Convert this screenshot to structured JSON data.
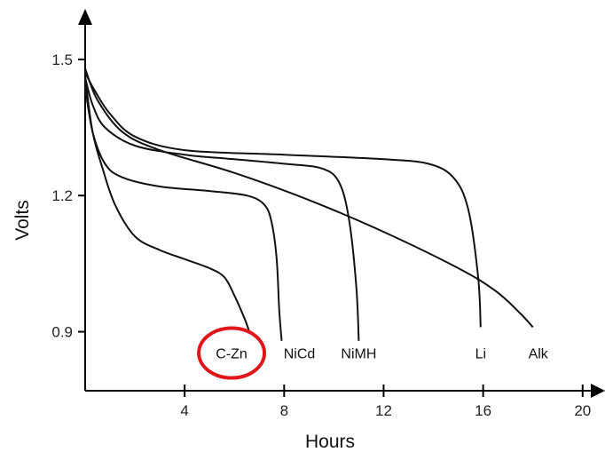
{
  "chart_data": {
    "type": "line",
    "xlabel": "Hours",
    "ylabel": "Volts",
    "xlim": [
      0,
      20.4
    ],
    "ylim": [
      0.77,
      1.58
    ],
    "x_ticks": [
      4,
      8,
      12,
      16,
      20
    ],
    "y_ticks": [
      0.9,
      1.2,
      1.5
    ],
    "y_tick_labels": [
      "0.9",
      "1.2",
      "1.5"
    ],
    "series": [
      {
        "name": "C-Zn",
        "highlighted": true,
        "highlight_color": "#e0161b",
        "points": [
          [
            0,
            1.46
          ],
          [
            0.3,
            1.34
          ],
          [
            0.7,
            1.26
          ],
          [
            1.2,
            1.18
          ],
          [
            2,
            1.11
          ],
          [
            3,
            1.08
          ],
          [
            4,
            1.06
          ],
          [
            5,
            1.04
          ],
          [
            5.6,
            1.02
          ],
          [
            6,
            0.98
          ],
          [
            6.4,
            0.93
          ],
          [
            6.6,
            0.9
          ]
        ]
      },
      {
        "name": "NiCd",
        "points": [
          [
            0,
            1.44
          ],
          [
            0.3,
            1.34
          ],
          [
            0.8,
            1.27
          ],
          [
            1.5,
            1.24
          ],
          [
            3,
            1.22
          ],
          [
            5,
            1.21
          ],
          [
            6.5,
            1.2
          ],
          [
            7.2,
            1.18
          ],
          [
            7.5,
            1.14
          ],
          [
            7.7,
            1.06
          ],
          [
            7.8,
            0.95
          ],
          [
            7.9,
            0.88
          ]
        ]
      },
      {
        "name": "NiMH",
        "points": [
          [
            0,
            1.46
          ],
          [
            0.3,
            1.4
          ],
          [
            0.8,
            1.35
          ],
          [
            2,
            1.31
          ],
          [
            4,
            1.29
          ],
          [
            6,
            1.28
          ],
          [
            8,
            1.27
          ],
          [
            9.5,
            1.26
          ],
          [
            10.2,
            1.23
          ],
          [
            10.6,
            1.15
          ],
          [
            10.9,
            1.0
          ],
          [
            11,
            0.88
          ]
        ]
      },
      {
        "name": "Li",
        "points": [
          [
            0,
            1.47
          ],
          [
            0.4,
            1.43
          ],
          [
            1,
            1.38
          ],
          [
            2,
            1.33
          ],
          [
            4,
            1.3
          ],
          [
            8,
            1.29
          ],
          [
            12,
            1.28
          ],
          [
            13.8,
            1.27
          ],
          [
            14.8,
            1.24
          ],
          [
            15.4,
            1.17
          ],
          [
            15.8,
            1.02
          ],
          [
            15.9,
            0.91
          ]
        ]
      },
      {
        "name": "Alk",
        "points": [
          [
            0,
            1.48
          ],
          [
            0.5,
            1.41
          ],
          [
            1.5,
            1.34
          ],
          [
            3,
            1.3
          ],
          [
            6,
            1.25
          ],
          [
            9,
            1.19
          ],
          [
            12,
            1.12
          ],
          [
            15,
            1.04
          ],
          [
            16.5,
            0.99
          ],
          [
            17.5,
            0.94
          ],
          [
            18,
            0.91
          ]
        ]
      }
    ]
  }
}
